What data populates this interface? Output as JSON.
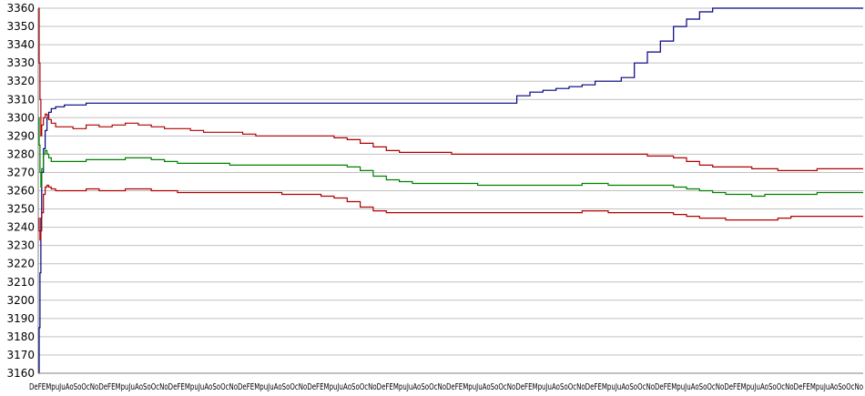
{
  "chart_data": {
    "type": "line",
    "title": "",
    "xlabel": "",
    "ylabel": "",
    "grid": true,
    "legend": "none",
    "ylim": [
      3160,
      3360
    ],
    "yticks": [
      3160,
      3170,
      3180,
      3190,
      3200,
      3210,
      3220,
      3230,
      3240,
      3250,
      3260,
      3270,
      3280,
      3290,
      3300,
      3310,
      3320,
      3330,
      3340,
      3350,
      3360
    ],
    "x_tick_label_text": "DeFEMpuJuAoSoOcNoDeFEMpuJuAoSoOcNoDeFEMpuJuAoSoOcNoDeFEMpuJuAoSoOcNoDeFEMpuJuAoSoOcNoDeFEMpuJuAoSoOcNoDeFEMpuJuAoSoOcNoDeFEMpuJuAoSoOcNoDeFEMpuJuAoSoOcNoDeFEMpuJuAoSoOcNoDeFEMpuJuAoSoOcNoDeFEMpuJuAoSoOcNo",
    "x": [
      0,
      1,
      2,
      3,
      4,
      6,
      8,
      10,
      12,
      15,
      20,
      30,
      40,
      55,
      70,
      85,
      100,
      115,
      130,
      145,
      160,
      175,
      190,
      205,
      220,
      235,
      250,
      265,
      280,
      295,
      310,
      325,
      340,
      355,
      370,
      385,
      400,
      415,
      430,
      445,
      460,
      475,
      490,
      505,
      520,
      535,
      550,
      565,
      580,
      595,
      610,
      625,
      640,
      655,
      670,
      685,
      700,
      715,
      730,
      745,
      760,
      775,
      790,
      805,
      820,
      835,
      850,
      865,
      880,
      895,
      910,
      925,
      940,
      948
    ],
    "series": [
      {
        "color": "#000080",
        "values": [
          3160,
          3185,
          3215,
          3245,
          3270,
          3283,
          3293,
          3300,
          3303,
          3305,
          3306,
          3307,
          3307,
          3308,
          3308,
          3308,
          3308,
          3308,
          3308,
          3308,
          3308,
          3308,
          3308,
          3308,
          3308,
          3308,
          3308,
          3308,
          3308,
          3308,
          3308,
          3308,
          3308,
          3308,
          3308,
          3308,
          3308,
          3308,
          3308,
          3308,
          3308,
          3308,
          3308,
          3308,
          3308,
          3308,
          3312,
          3314,
          3315,
          3316,
          3317,
          3318,
          3320,
          3320,
          3322,
          3330,
          3336,
          3342,
          3350,
          3354,
          3358,
          3360,
          3360,
          3360,
          3360,
          3360,
          3360,
          3360,
          3360,
          3360,
          3360,
          3360,
          3360,
          3360
        ]
      },
      {
        "color": "#b00000",
        "values": [
          3360,
          3330,
          3310,
          3290,
          3296,
          3300,
          3302,
          3301,
          3299,
          3297,
          3295,
          3295,
          3294,
          3296,
          3295,
          3296,
          3297,
          3296,
          3295,
          3294,
          3294,
          3293,
          3292,
          3292,
          3292,
          3291,
          3290,
          3290,
          3290,
          3290,
          3290,
          3290,
          3289,
          3288,
          3286,
          3284,
          3282,
          3281,
          3281,
          3281,
          3281,
          3280,
          3280,
          3280,
          3280,
          3280,
          3280,
          3280,
          3280,
          3280,
          3280,
          3280,
          3280,
          3280,
          3280,
          3280,
          3279,
          3279,
          3278,
          3276,
          3274,
          3273,
          3273,
          3273,
          3272,
          3272,
          3271,
          3271,
          3271,
          3272,
          3272,
          3272,
          3272,
          3272
        ]
      },
      {
        "color": "#008000",
        "values": [
          3300,
          3285,
          3270,
          3262,
          3272,
          3280,
          3282,
          3280,
          3278,
          3276,
          3276,
          3276,
          3276,
          3277,
          3277,
          3277,
          3278,
          3278,
          3277,
          3276,
          3275,
          3275,
          3275,
          3275,
          3274,
          3274,
          3274,
          3274,
          3274,
          3274,
          3274,
          3274,
          3274,
          3273,
          3271,
          3268,
          3266,
          3265,
          3264,
          3264,
          3264,
          3264,
          3264,
          3263,
          3263,
          3263,
          3263,
          3263,
          3263,
          3263,
          3263,
          3264,
          3264,
          3263,
          3263,
          3263,
          3263,
          3263,
          3262,
          3261,
          3260,
          3259,
          3258,
          3258,
          3257,
          3258,
          3258,
          3258,
          3258,
          3259,
          3259,
          3259,
          3259,
          3259
        ]
      },
      {
        "color": "#b00000",
        "values": [
          3245,
          3238,
          3233,
          3238,
          3248,
          3258,
          3262,
          3263,
          3262,
          3261,
          3260,
          3260,
          3260,
          3261,
          3260,
          3260,
          3261,
          3261,
          3260,
          3260,
          3259,
          3259,
          3259,
          3259,
          3259,
          3259,
          3259,
          3259,
          3258,
          3258,
          3258,
          3257,
          3256,
          3254,
          3251,
          3249,
          3248,
          3248,
          3248,
          3248,
          3248,
          3248,
          3248,
          3248,
          3248,
          3248,
          3248,
          3248,
          3248,
          3248,
          3248,
          3249,
          3249,
          3248,
          3248,
          3248,
          3248,
          3248,
          3247,
          3246,
          3245,
          3245,
          3244,
          3244,
          3244,
          3244,
          3245,
          3246,
          3246,
          3246,
          3246,
          3246,
          3246,
          3246
        ]
      }
    ]
  }
}
